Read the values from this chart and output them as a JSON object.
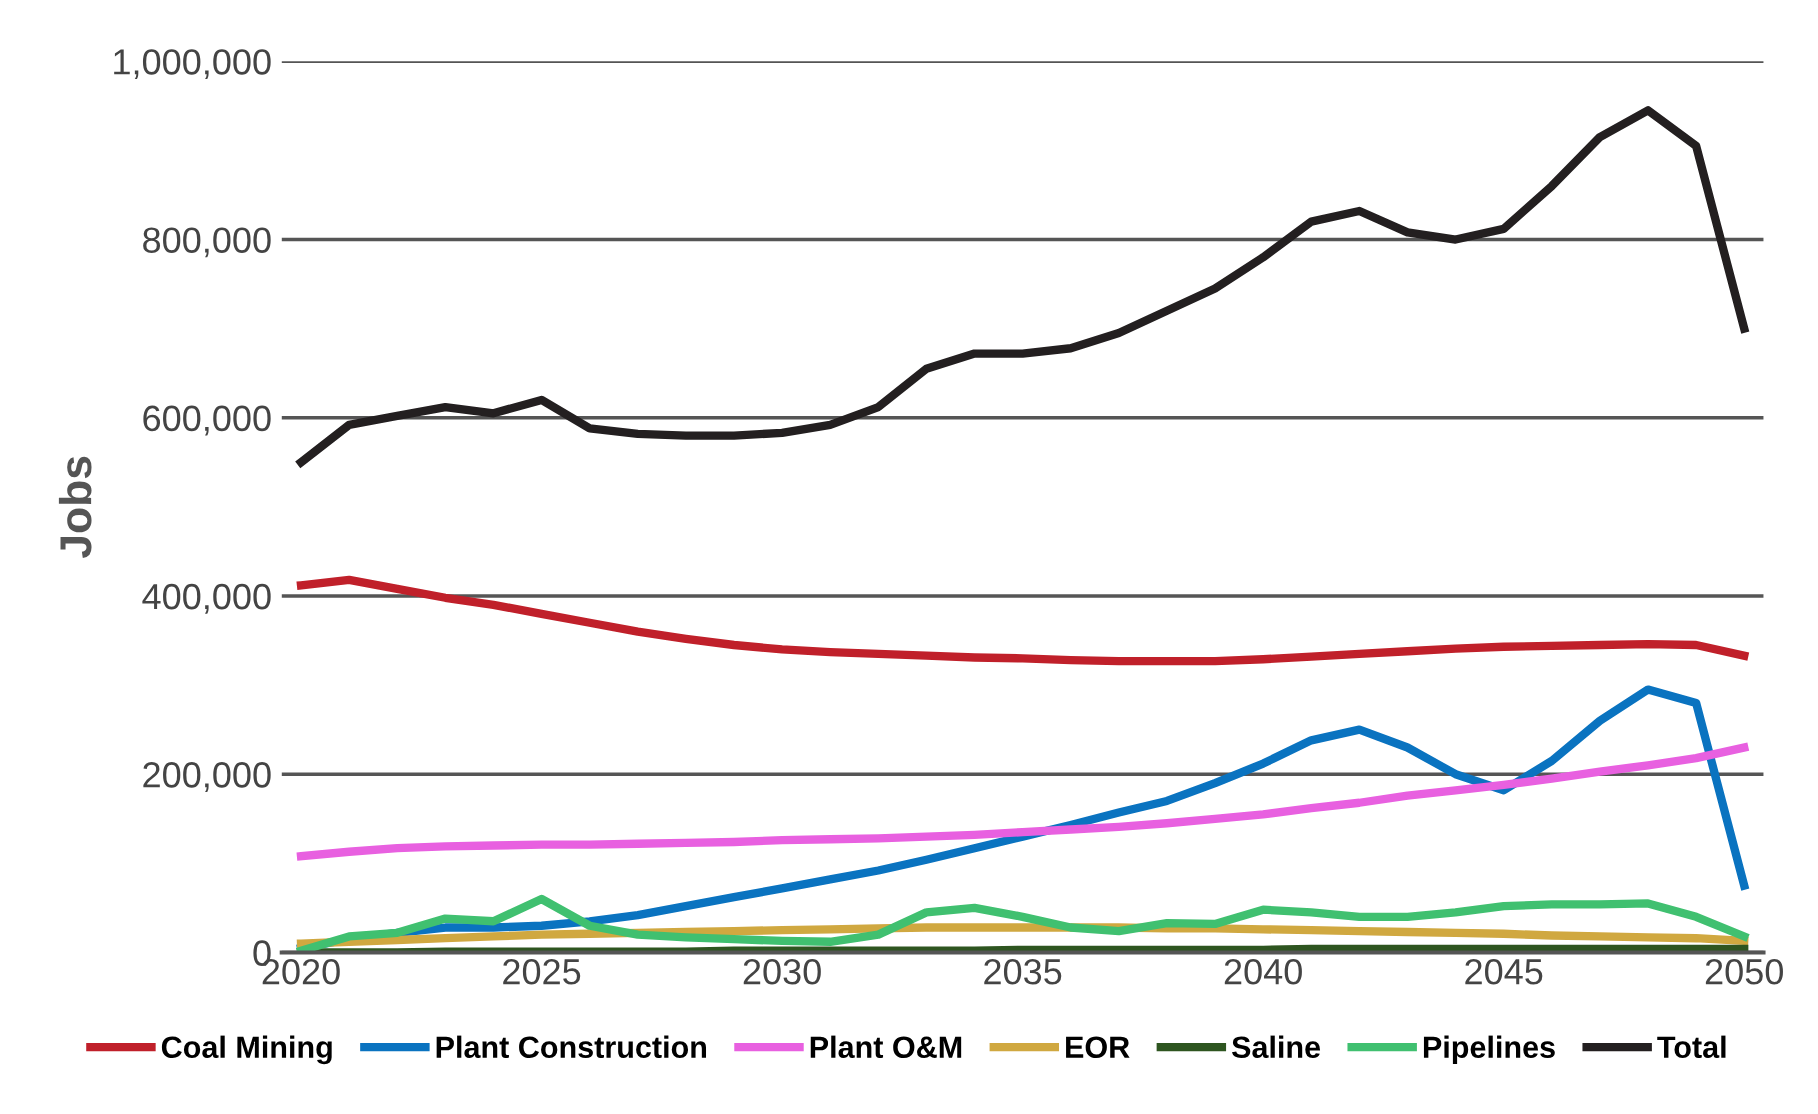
{
  "chart_data": {
    "type": "line",
    "ylabel": "Jobs",
    "x": [
      2020,
      2021,
      2022,
      2023,
      2024,
      2025,
      2026,
      2027,
      2028,
      2029,
      2030,
      2031,
      2032,
      2033,
      2034,
      2035,
      2036,
      2037,
      2038,
      2039,
      2040,
      2041,
      2042,
      2043,
      2044,
      2045,
      2046,
      2047,
      2048,
      2049,
      2050
    ],
    "series": [
      {
        "name": "Coal Mining",
        "color": "#c0202a",
        "values": [
          412000,
          418000,
          408000,
          398000,
          390000,
          380000,
          370000,
          360000,
          352000,
          345000,
          340000,
          337000,
          335000,
          333000,
          331000,
          330000,
          328000,
          327000,
          327000,
          327000,
          329000,
          332000,
          335000,
          338000,
          341000,
          343000,
          344000,
          345000,
          346000,
          345000,
          333000
        ]
      },
      {
        "name": "Plant Construction",
        "color": "#0a73c0",
        "values": [
          5000,
          15000,
          22000,
          28000,
          28000,
          30000,
          35000,
          42000,
          52000,
          62000,
          72000,
          82000,
          92000,
          104000,
          117000,
          130000,
          143000,
          157000,
          170000,
          190000,
          212000,
          238000,
          250000,
          230000,
          200000,
          182000,
          215000,
          260000,
          295000,
          280000,
          75000
        ]
      },
      {
        "name": "Plant O&M",
        "color": "#e860e0",
        "values": [
          108000,
          113000,
          117000,
          119000,
          120000,
          121000,
          121000,
          122000,
          123000,
          124000,
          126000,
          127000,
          128000,
          130000,
          132000,
          135000,
          138000,
          141000,
          145000,
          150000,
          155000,
          162000,
          168000,
          176000,
          182000,
          188000,
          195000,
          203000,
          210000,
          218000,
          230000
        ]
      },
      {
        "name": "EOR",
        "color": "#d0a840",
        "values": [
          10000,
          12000,
          14000,
          16000,
          18000,
          20000,
          21000,
          22000,
          23000,
          24000,
          25000,
          26000,
          27000,
          28000,
          28000,
          28000,
          28000,
          28000,
          27000,
          27000,
          26000,
          25000,
          24000,
          23000,
          22000,
          21000,
          19000,
          18000,
          17000,
          16000,
          13000
        ]
      },
      {
        "name": "Saline",
        "color": "#2e5520",
        "values": [
          0,
          0,
          0,
          1000,
          1000,
          1000,
          1000,
          1000,
          1000,
          2000,
          2000,
          2000,
          2000,
          2000,
          2000,
          3000,
          3000,
          3000,
          3000,
          3000,
          3000,
          4000,
          4000,
          4000,
          4000,
          4000,
          4000,
          4000,
          4000,
          4000,
          4000
        ]
      },
      {
        "name": "Pipelines",
        "color": "#40c070",
        "values": [
          2000,
          18000,
          22000,
          38000,
          35000,
          60000,
          30000,
          20000,
          17000,
          15000,
          13000,
          12000,
          20000,
          45000,
          50000,
          40000,
          28000,
          24000,
          33000,
          32000,
          48000,
          45000,
          40000,
          40000,
          45000,
          52000,
          54000,
          54000,
          55000,
          40000,
          18000
        ]
      },
      {
        "name": "Total",
        "color": "#231f20",
        "values": [
          550000,
          592000,
          602000,
          612000,
          605000,
          620000,
          588000,
          582000,
          580000,
          580000,
          583000,
          592000,
          612000,
          655000,
          672000,
          672000,
          678000,
          695000,
          720000,
          745000,
          780000,
          820000,
          832000,
          808000,
          800000,
          812000,
          860000,
          915000,
          945000,
          905000,
          700000
        ]
      }
    ],
    "xlim": [
      2019.6,
      2050.4
    ],
    "xticks": [
      2020,
      2025,
      2030,
      2035,
      2040,
      2045,
      2050
    ],
    "ylim": [
      0,
      1000000
    ],
    "yticks": [
      {
        "value": 0,
        "label": "0"
      },
      {
        "value": 200000,
        "label": "200,000"
      },
      {
        "value": 400000,
        "label": "400,000"
      },
      {
        "value": 600000,
        "label": "600,000"
      },
      {
        "value": 800000,
        "label": "800,000"
      },
      {
        "value": 1000000,
        "label": "1,000,000"
      }
    ],
    "grid": "y",
    "legend": "bottom",
    "marker": "none",
    "line_style": "solid"
  }
}
